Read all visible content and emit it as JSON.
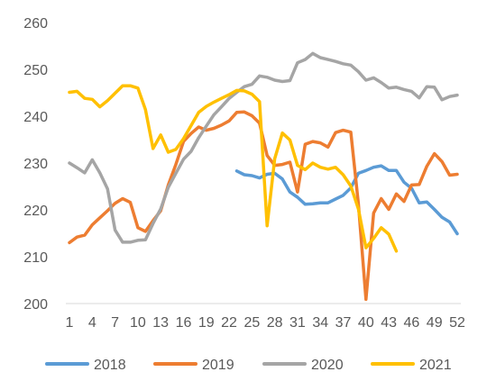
{
  "chart_data": {
    "type": "line",
    "title": "",
    "xlabel": "",
    "ylabel": "",
    "x_tick_labels": [
      "1",
      "4",
      "7",
      "10",
      "13",
      "16",
      "19",
      "22",
      "25",
      "28",
      "31",
      "34",
      "37",
      "40",
      "43",
      "46",
      "49",
      "52"
    ],
    "y_tick_labels": [
      "200",
      "210",
      "220",
      "230",
      "240",
      "250",
      "260"
    ],
    "ylim": [
      200,
      260
    ],
    "xlim": [
      1,
      52
    ],
    "grid": false,
    "legend_position": "bottom",
    "series": [
      {
        "name": "2018",
        "color": "#5B9BD5",
        "x": [
          23,
          24,
          25,
          26,
          27,
          28,
          29,
          30,
          31,
          32,
          33,
          34,
          35,
          36,
          37,
          38,
          39,
          40,
          41,
          42,
          43,
          44,
          45,
          46,
          47,
          48,
          49,
          50,
          51,
          52
        ],
        "y": [
          228.3,
          227.5,
          227.3,
          226.8,
          227.6,
          227.8,
          226.6,
          223.8,
          222.7,
          221.2,
          221.3,
          221.5,
          221.5,
          222.3,
          223.1,
          224.7,
          227.8,
          228.4,
          229.1,
          229.4,
          228.4,
          228.4,
          225.9,
          224.6,
          221.5,
          221.7,
          220.1,
          218.4,
          217.4,
          214.9
        ]
      },
      {
        "name": "2019",
        "color": "#ED7D31",
        "x": [
          1,
          2,
          3,
          4,
          5,
          6,
          7,
          8,
          9,
          10,
          11,
          12,
          13,
          14,
          15,
          16,
          17,
          18,
          19,
          20,
          21,
          22,
          23,
          24,
          25,
          26,
          27,
          28,
          29,
          30,
          31,
          32,
          33,
          34,
          35,
          36,
          37,
          38,
          39,
          40,
          41,
          42,
          43,
          44,
          45,
          46,
          47,
          48,
          49,
          50,
          51,
          52
        ],
        "y": [
          213.0,
          214.2,
          214.6,
          216.8,
          218.3,
          219.8,
          221.4,
          222.4,
          221.6,
          216.2,
          215.4,
          217.7,
          219.8,
          225.3,
          229.7,
          234.6,
          236.3,
          237.7,
          237.0,
          237.4,
          238.1,
          239.0,
          240.8,
          240.9,
          240.1,
          238.5,
          231.6,
          229.5,
          229.7,
          230.2,
          223.8,
          234.0,
          234.6,
          234.3,
          233.4,
          236.5,
          237.0,
          236.6,
          221.3,
          200.9,
          219.3,
          222.4,
          220.1,
          223.4,
          221.8,
          225.3,
          225.4,
          229.3,
          232.0,
          230.3,
          227.4,
          227.6
        ]
      },
      {
        "name": "2020",
        "color": "#A5A5A5",
        "x": [
          1,
          2,
          3,
          4,
          5,
          6,
          7,
          8,
          9,
          10,
          11,
          12,
          13,
          14,
          15,
          16,
          17,
          18,
          19,
          20,
          21,
          22,
          23,
          24,
          25,
          26,
          27,
          28,
          29,
          30,
          31,
          32,
          33,
          34,
          35,
          36,
          37,
          38,
          39,
          40,
          41,
          42,
          43,
          44,
          45,
          46,
          47,
          48,
          49,
          50,
          51,
          52
        ],
        "y": [
          230.0,
          229.0,
          227.9,
          230.7,
          227.9,
          224.5,
          215.7,
          213.1,
          213.1,
          213.5,
          213.6,
          217.1,
          220.2,
          224.8,
          227.8,
          230.8,
          232.5,
          235.4,
          237.9,
          240.3,
          242.0,
          243.8,
          245.1,
          246.3,
          246.8,
          248.6,
          248.3,
          247.7,
          247.4,
          247.6,
          251.4,
          252.1,
          253.4,
          252.5,
          252.1,
          251.7,
          251.2,
          250.9,
          249.5,
          247.7,
          248.2,
          247.2,
          246.0,
          246.2,
          245.7,
          245.3,
          243.9,
          246.3,
          246.2,
          243.5,
          244.2,
          244.5
        ]
      },
      {
        "name": "2021",
        "color": "#FFC000",
        "x": [
          1,
          2,
          3,
          4,
          5,
          6,
          7,
          8,
          9,
          10,
          11,
          12,
          13,
          14,
          15,
          16,
          17,
          18,
          19,
          20,
          21,
          22,
          23,
          24,
          25,
          26,
          27,
          28,
          29,
          30,
          31,
          32,
          33,
          34,
          35,
          36,
          37,
          38,
          39,
          40,
          41,
          42,
          43,
          44
        ],
        "y": [
          245.1,
          245.3,
          243.8,
          243.6,
          242.0,
          243.3,
          244.9,
          246.5,
          246.5,
          246.0,
          241.4,
          233.1,
          236.0,
          232.3,
          232.9,
          235.2,
          238.0,
          240.8,
          242.1,
          243.0,
          243.8,
          244.6,
          245.5,
          245.4,
          244.7,
          243.1,
          216.6,
          230.9,
          236.4,
          234.9,
          229.5,
          228.6,
          230.0,
          229.1,
          228.7,
          229.1,
          227.5,
          225.1,
          220.2,
          211.9,
          213.9,
          216.2,
          214.8,
          211.2
        ]
      }
    ]
  }
}
